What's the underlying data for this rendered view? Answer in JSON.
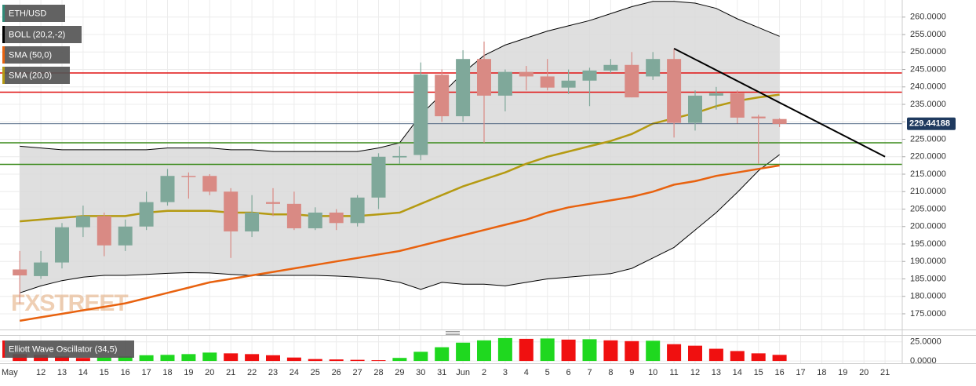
{
  "chart_data": {
    "type": "candlestick",
    "symbol": "ETH/USD",
    "symbol_color": "#2f8a78",
    "up_color": "#7fa89a",
    "down_color": "#d98a84",
    "watermark": "FXSTREET",
    "categories": [
      "May",
      "12",
      "13",
      "14",
      "15",
      "16",
      "17",
      "18",
      "19",
      "20",
      "21",
      "22",
      "23",
      "24",
      "25",
      "26",
      "27",
      "28",
      "29",
      "30",
      "31",
      "Jun",
      "2",
      "3",
      "4",
      "5",
      "6",
      "7",
      "8",
      "9",
      "10",
      "11",
      "12",
      "13",
      "14",
      "15",
      "16",
      "17",
      "18",
      "19",
      "20",
      "21"
    ],
    "open": [
      187.7,
      185.8,
      189.7,
      199.8,
      203,
      194.6,
      200,
      207,
      214.5,
      214.5,
      210,
      198.6,
      207,
      206.5,
      199.5,
      204,
      201,
      208.3,
      219.8,
      220.5,
      243.5,
      231.6,
      248,
      237.5,
      244.3,
      243,
      239.8,
      241.8,
      244.7,
      246.3,
      243,
      248,
      229.7,
      237.5,
      238.2,
      231.5,
      230.8,
      null,
      null,
      null,
      null,
      null
    ],
    "high": [
      193,
      193,
      201,
      206,
      204,
      202,
      210,
      216.5,
      215.5,
      215,
      211,
      209,
      211,
      210,
      205.5,
      205,
      209,
      221,
      223,
      247,
      245,
      250.5,
      253,
      245,
      246,
      248,
      245,
      245.5,
      248,
      250,
      250,
      251,
      239,
      240,
      239,
      232,
      231,
      null,
      null,
      null,
      null,
      null
    ],
    "low": [
      178,
      185,
      188,
      197,
      191.5,
      193,
      199,
      206,
      208,
      209,
      191,
      197,
      203,
      199,
      199,
      199,
      200,
      205,
      218,
      219,
      230,
      230,
      224,
      233,
      239,
      239,
      238,
      234.5,
      244,
      237,
      242,
      225.5,
      227.5,
      233.5,
      229.5,
      218,
      228.5,
      null,
      null,
      null,
      null,
      null
    ],
    "close": [
      186,
      189.7,
      199.8,
      203,
      194.6,
      200,
      207,
      214.5,
      214.3,
      210,
      198.6,
      204,
      206.5,
      199.5,
      204,
      201,
      208.3,
      220,
      220.2,
      243.6,
      231.6,
      248,
      237.5,
      244.3,
      243,
      239.8,
      241.8,
      244.7,
      246.3,
      237,
      248,
      229.7,
      237.5,
      238.2,
      231.2,
      231,
      229.4,
      null,
      null,
      null,
      null,
      null
    ],
    "bands": {
      "name": "BOLL (20,2,-2)",
      "color": "#000000",
      "fill": "#d9d9d9",
      "upper": [
        223,
        222.5,
        222,
        222,
        222,
        222,
        222,
        222.5,
        222.5,
        222.5,
        222,
        222,
        221.5,
        221.5,
        221.5,
        221.5,
        221.5,
        222.5,
        224,
        232,
        238,
        244,
        249,
        252,
        254,
        256,
        257.5,
        259,
        261,
        263,
        264.5,
        264.5,
        264,
        262.5,
        259.5,
        257,
        254.5,
        null,
        null,
        null,
        null,
        null
      ],
      "lower": [
        181,
        183,
        184.5,
        185.5,
        186,
        186,
        186.3,
        186.6,
        186.8,
        186.7,
        186.3,
        186,
        186,
        186,
        186,
        185.8,
        185.5,
        185,
        184,
        182,
        184,
        183.5,
        183.5,
        183,
        184,
        185,
        185.5,
        186,
        186.5,
        188,
        191,
        194,
        199,
        204,
        209.8,
        216,
        220.6,
        null,
        null,
        null,
        null,
        null
      ]
    },
    "series": [
      {
        "name": "SMA (50,0)",
        "color": "#e8620f",
        "values": [
          173,
          174,
          175,
          176,
          177,
          178,
          179.5,
          181,
          182.5,
          184,
          185,
          186,
          187,
          188,
          189,
          190,
          191,
          192,
          193,
          194.5,
          196,
          197.5,
          199,
          200.5,
          202,
          204,
          205.5,
          206.5,
          207.5,
          208.5,
          210,
          212,
          213,
          214.5,
          215.5,
          216.5,
          217.5,
          null,
          null,
          null,
          null,
          null
        ]
      },
      {
        "name": "SMA (20,0)",
        "color": "#b59a12",
        "values": [
          201.5,
          202,
          202.5,
          203,
          203,
          203,
          204,
          204.5,
          204.5,
          204.5,
          204,
          204,
          203.5,
          203.5,
          203,
          203,
          203,
          203.5,
          204,
          206.5,
          209,
          211.5,
          213.5,
          215.5,
          218,
          220,
          221.5,
          223,
          224.5,
          226.5,
          229.5,
          231,
          232.5,
          234.5,
          236,
          237,
          237.8,
          null,
          null,
          null,
          null,
          null
        ]
      }
    ],
    "levels": [
      {
        "value": 244,
        "color": "#e01010"
      },
      {
        "value": 238.5,
        "color": "#e01010"
      },
      {
        "value": 224,
        "color": "#3a8a1a"
      },
      {
        "value": 217.8,
        "color": "#3a8a1a"
      }
    ],
    "last_price": {
      "value": 229.44188,
      "color": "#1f3a5f"
    },
    "trendline": {
      "x": [
        "11",
        "21"
      ],
      "values": [
        251,
        220
      ],
      "color": "#000000"
    },
    "ylim": [
      170.5,
      264.9
    ],
    "yticks": [
      {
        "value": 175,
        "label": "175.0000"
      },
      {
        "value": 180,
        "label": "180.0000"
      },
      {
        "value": 185,
        "label": "185.0000"
      },
      {
        "value": 190,
        "label": "190.0000"
      },
      {
        "value": 195,
        "label": "195.0000"
      },
      {
        "value": 200,
        "label": "200.0000"
      },
      {
        "value": 205,
        "label": "205.0000"
      },
      {
        "value": 210,
        "label": "210.0000"
      },
      {
        "value": 215,
        "label": "215.0000"
      },
      {
        "value": 220,
        "label": "220.0000"
      },
      {
        "value": 225,
        "label": "225.0000"
      },
      {
        "value": 230,
        "label": "230.0000"
      },
      {
        "value": 235,
        "label": "235.0000"
      },
      {
        "value": 240,
        "label": "240.0000"
      },
      {
        "value": 245,
        "label": "245.0000"
      },
      {
        "value": 250,
        "label": "250.0000"
      },
      {
        "value": 255,
        "label": "255.0000"
      },
      {
        "value": 260,
        "label": "260.0000"
      }
    ],
    "grid": true,
    "oscillator": {
      "name": "Elliott Wave Oscillator (34,5)",
      "values": [
        9,
        8,
        6,
        4,
        4.5,
        6,
        7.5,
        8,
        9,
        11,
        10,
        9,
        7.5,
        4.5,
        2.5,
        2,
        1.5,
        1,
        4,
        12,
        18,
        24,
        27,
        30,
        29,
        29.5,
        28,
        28.5,
        27,
        26,
        26.5,
        22,
        20,
        16,
        13,
        10,
        8,
        null,
        null,
        null,
        null,
        null
      ],
      "colors": [
        "#f01010",
        "#f01010",
        "#f01010",
        "#f01010",
        "#1fd81f",
        "#1fd81f",
        "#1fd81f",
        "#1fd81f",
        "#1fd81f",
        "#1fd81f",
        "#f01010",
        "#f01010",
        "#f01010",
        "#f01010",
        "#f01010",
        "#f01010",
        "#f01010",
        "#f01010",
        "#1fd81f",
        "#1fd81f",
        "#1fd81f",
        "#1fd81f",
        "#1fd81f",
        "#1fd81f",
        "#f01010",
        "#1fd81f",
        "#f01010",
        "#1fd81f",
        "#f01010",
        "#f01010",
        "#1fd81f",
        "#f01010",
        "#f01010",
        "#f01010",
        "#f01010",
        "#f01010",
        "#f01010",
        null,
        null,
        null,
        null,
        null
      ],
      "ylim": [
        -3,
        33
      ],
      "yticks": [
        {
          "value": 0,
          "label": "0.0000"
        },
        {
          "value": 25,
          "label": "25.0000"
        }
      ]
    }
  }
}
